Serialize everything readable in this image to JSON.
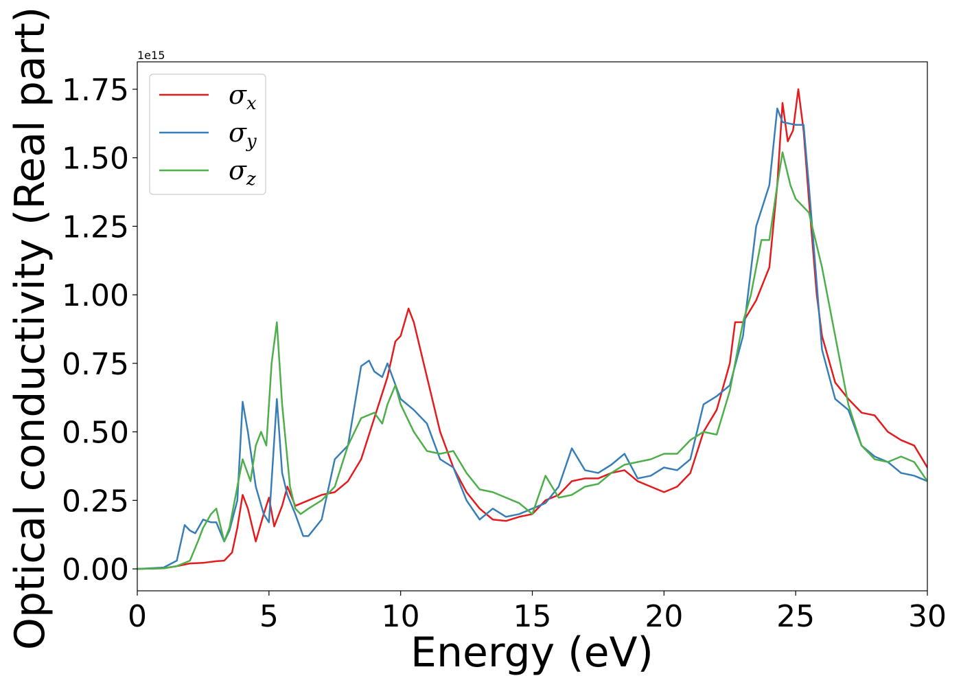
{
  "chart_data": {
    "type": "line",
    "title": "",
    "xlabel": "Energy (eV)",
    "ylabel": "Optical conductivity (Real part)",
    "y_offset_label": "1e15",
    "xlim": [
      0,
      30
    ],
    "ylim": [
      -0.08,
      1.85
    ],
    "x_ticks": [
      0,
      5,
      10,
      15,
      20,
      25,
      30
    ],
    "x_tick_labels": [
      "0",
      "5",
      "10",
      "15",
      "20",
      "25",
      "30"
    ],
    "y_ticks": [
      0.0,
      0.25,
      0.5,
      0.75,
      1.0,
      1.25,
      1.5,
      1.75
    ],
    "y_tick_labels": [
      "0.00",
      "0.25",
      "0.50",
      "0.75",
      "1.00",
      "1.25",
      "1.50",
      "1.75"
    ],
    "grid": false,
    "legend_position": "top-left",
    "series": [
      {
        "name": "σx",
        "legend": {
          "base": "σ",
          "sub": "x"
        },
        "color": "#e41a1c",
        "points": [
          [
            0,
            0
          ],
          [
            1,
            0.002
          ],
          [
            1.5,
            0.01
          ],
          [
            2,
            0.02
          ],
          [
            2.5,
            0.022
          ],
          [
            3,
            0.028
          ],
          [
            3.3,
            0.03
          ],
          [
            3.6,
            0.06
          ],
          [
            3.8,
            0.15
          ],
          [
            4,
            0.27
          ],
          [
            4.2,
            0.22
          ],
          [
            4.5,
            0.1
          ],
          [
            4.8,
            0.2
          ],
          [
            5,
            0.26
          ],
          [
            5.2,
            0.155
          ],
          [
            5.5,
            0.23
          ],
          [
            5.7,
            0.3
          ],
          [
            6,
            0.23
          ],
          [
            6.5,
            0.25
          ],
          [
            7,
            0.27
          ],
          [
            7.5,
            0.28
          ],
          [
            8,
            0.32
          ],
          [
            8.5,
            0.4
          ],
          [
            9,
            0.55
          ],
          [
            9.5,
            0.7
          ],
          [
            9.8,
            0.83
          ],
          [
            10,
            0.85
          ],
          [
            10.3,
            0.95
          ],
          [
            10.5,
            0.9
          ],
          [
            11,
            0.7
          ],
          [
            11.5,
            0.5
          ],
          [
            12,
            0.37
          ],
          [
            12.5,
            0.28
          ],
          [
            13,
            0.22
          ],
          [
            13.5,
            0.18
          ],
          [
            14,
            0.175
          ],
          [
            14.5,
            0.19
          ],
          [
            15,
            0.2
          ],
          [
            15.5,
            0.25
          ],
          [
            16,
            0.27
          ],
          [
            16.5,
            0.32
          ],
          [
            17,
            0.33
          ],
          [
            17.5,
            0.33
          ],
          [
            18,
            0.35
          ],
          [
            18.5,
            0.36
          ],
          [
            19,
            0.32
          ],
          [
            19.5,
            0.3
          ],
          [
            20,
            0.28
          ],
          [
            20.5,
            0.3
          ],
          [
            21,
            0.35
          ],
          [
            21.5,
            0.5
          ],
          [
            22,
            0.58
          ],
          [
            22.5,
            0.75
          ],
          [
            22.7,
            0.9
          ],
          [
            23,
            0.9
          ],
          [
            23.5,
            0.98
          ],
          [
            24,
            1.1
          ],
          [
            24.3,
            1.4
          ],
          [
            24.5,
            1.7
          ],
          [
            24.7,
            1.56
          ],
          [
            24.9,
            1.6
          ],
          [
            25.1,
            1.75
          ],
          [
            25.3,
            1.6
          ],
          [
            25.5,
            1.35
          ],
          [
            25.8,
            1.0
          ],
          [
            26,
            0.85
          ],
          [
            26.5,
            0.68
          ],
          [
            27,
            0.62
          ],
          [
            27.5,
            0.57
          ],
          [
            28,
            0.56
          ],
          [
            28.5,
            0.5
          ],
          [
            29,
            0.47
          ],
          [
            29.5,
            0.45
          ],
          [
            30,
            0.37
          ]
        ]
      },
      {
        "name": "σy",
        "legend": {
          "base": "σ",
          "sub": "y"
        },
        "color": "#377eb8",
        "points": [
          [
            0,
            0
          ],
          [
            1,
            0.005
          ],
          [
            1.5,
            0.03
          ],
          [
            1.8,
            0.16
          ],
          [
            2,
            0.14
          ],
          [
            2.2,
            0.13
          ],
          [
            2.5,
            0.18
          ],
          [
            2.8,
            0.17
          ],
          [
            3,
            0.17
          ],
          [
            3.3,
            0.1
          ],
          [
            3.5,
            0.14
          ],
          [
            3.8,
            0.25
          ],
          [
            4,
            0.61
          ],
          [
            4.2,
            0.5
          ],
          [
            4.5,
            0.3
          ],
          [
            4.8,
            0.2
          ],
          [
            5,
            0.17
          ],
          [
            5.3,
            0.62
          ],
          [
            5.5,
            0.35
          ],
          [
            5.7,
            0.27
          ],
          [
            6,
            0.2
          ],
          [
            6.3,
            0.12
          ],
          [
            6.5,
            0.12
          ],
          [
            7,
            0.18
          ],
          [
            7.5,
            0.4
          ],
          [
            8,
            0.45
          ],
          [
            8.5,
            0.74
          ],
          [
            8.8,
            0.76
          ],
          [
            9,
            0.72
          ],
          [
            9.3,
            0.7
          ],
          [
            9.5,
            0.75
          ],
          [
            10,
            0.62
          ],
          [
            10.5,
            0.58
          ],
          [
            11,
            0.53
          ],
          [
            11.5,
            0.4
          ],
          [
            12,
            0.37
          ],
          [
            12.5,
            0.25
          ],
          [
            13,
            0.18
          ],
          [
            13.5,
            0.22
          ],
          [
            14,
            0.19
          ],
          [
            14.5,
            0.2
          ],
          [
            15,
            0.22
          ],
          [
            15.5,
            0.24
          ],
          [
            16,
            0.3
          ],
          [
            16.5,
            0.44
          ],
          [
            17,
            0.36
          ],
          [
            17.5,
            0.35
          ],
          [
            18,
            0.38
          ],
          [
            18.5,
            0.42
          ],
          [
            19,
            0.33
          ],
          [
            19.5,
            0.34
          ],
          [
            20,
            0.37
          ],
          [
            20.5,
            0.36
          ],
          [
            21,
            0.4
          ],
          [
            21.5,
            0.6
          ],
          [
            22,
            0.63
          ],
          [
            22.5,
            0.67
          ],
          [
            23,
            0.85
          ],
          [
            23.5,
            1.25
          ],
          [
            24,
            1.4
          ],
          [
            24.3,
            1.68
          ],
          [
            24.5,
            1.63
          ],
          [
            25,
            1.62
          ],
          [
            25.3,
            1.62
          ],
          [
            25.5,
            1.4
          ],
          [
            26,
            0.8
          ],
          [
            26.5,
            0.62
          ],
          [
            27,
            0.58
          ],
          [
            27.5,
            0.45
          ],
          [
            28,
            0.41
          ],
          [
            28.5,
            0.39
          ],
          [
            29,
            0.35
          ],
          [
            29.5,
            0.34
          ],
          [
            30,
            0.32
          ]
        ]
      },
      {
        "name": "σz",
        "legend": {
          "base": "σ",
          "sub": "z"
        },
        "color": "#4daf4a",
        "points": [
          [
            0,
            0
          ],
          [
            1,
            0.002
          ],
          [
            1.5,
            0.01
          ],
          [
            2,
            0.03
          ],
          [
            2.3,
            0.1
          ],
          [
            2.5,
            0.15
          ],
          [
            2.8,
            0.2
          ],
          [
            3,
            0.22
          ],
          [
            3.3,
            0.1
          ],
          [
            3.5,
            0.15
          ],
          [
            3.8,
            0.3
          ],
          [
            4,
            0.4
          ],
          [
            4.3,
            0.32
          ],
          [
            4.5,
            0.45
          ],
          [
            4.7,
            0.5
          ],
          [
            4.9,
            0.45
          ],
          [
            5.1,
            0.75
          ],
          [
            5.3,
            0.9
          ],
          [
            5.5,
            0.6
          ],
          [
            5.8,
            0.3
          ],
          [
            6,
            0.22
          ],
          [
            6.2,
            0.2
          ],
          [
            6.5,
            0.22
          ],
          [
            7,
            0.25
          ],
          [
            7.5,
            0.3
          ],
          [
            8,
            0.45
          ],
          [
            8.5,
            0.55
          ],
          [
            9,
            0.57
          ],
          [
            9.3,
            0.53
          ],
          [
            9.5,
            0.6
          ],
          [
            9.8,
            0.67
          ],
          [
            10,
            0.6
          ],
          [
            10.5,
            0.5
          ],
          [
            11,
            0.43
          ],
          [
            11.5,
            0.42
          ],
          [
            12,
            0.43
          ],
          [
            12.5,
            0.35
          ],
          [
            13,
            0.29
          ],
          [
            13.5,
            0.28
          ],
          [
            14,
            0.26
          ],
          [
            14.5,
            0.24
          ],
          [
            15,
            0.2
          ],
          [
            15.5,
            0.34
          ],
          [
            16,
            0.26
          ],
          [
            16.5,
            0.27
          ],
          [
            17,
            0.3
          ],
          [
            17.5,
            0.31
          ],
          [
            18,
            0.35
          ],
          [
            18.5,
            0.38
          ],
          [
            19,
            0.39
          ],
          [
            19.5,
            0.4
          ],
          [
            20,
            0.42
          ],
          [
            20.5,
            0.42
          ],
          [
            21,
            0.47
          ],
          [
            21.5,
            0.5
          ],
          [
            22,
            0.49
          ],
          [
            22.5,
            0.65
          ],
          [
            23,
            0.9
          ],
          [
            23.3,
            1.0
          ],
          [
            23.7,
            1.2
          ],
          [
            24,
            1.2
          ],
          [
            24.3,
            1.4
          ],
          [
            24.5,
            1.52
          ],
          [
            24.8,
            1.4
          ],
          [
            25,
            1.35
          ],
          [
            25.5,
            1.3
          ],
          [
            26,
            1.1
          ],
          [
            26.5,
            0.85
          ],
          [
            27,
            0.6
          ],
          [
            27.5,
            0.45
          ],
          [
            28,
            0.4
          ],
          [
            28.5,
            0.39
          ],
          [
            29,
            0.41
          ],
          [
            29.5,
            0.39
          ],
          [
            30,
            0.32
          ]
        ]
      }
    ]
  }
}
